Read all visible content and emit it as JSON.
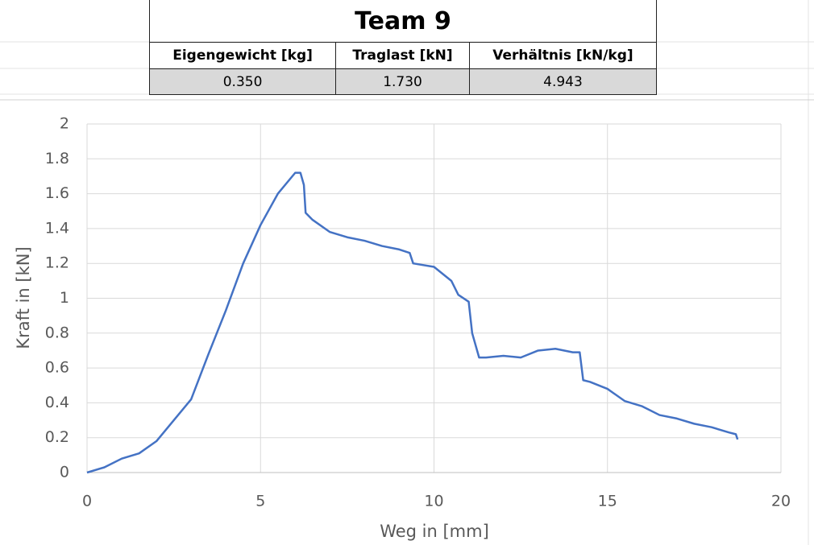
{
  "table": {
    "title": "Team 9",
    "header": [
      "Eigengewicht [kg]",
      "Traglast [kN]",
      "Verhältnis [kN/kg]"
    ],
    "rows": [
      [
        "0.350",
        "1.730",
        "4.943"
      ]
    ]
  },
  "chart_data": {
    "type": "line",
    "xlabel": "Weg in [mm]",
    "ylabel": "Kraft in [kN]",
    "x": [
      0,
      0.5,
      1,
      1.5,
      2,
      2.5,
      3,
      3.5,
      4,
      4.5,
      5,
      5.5,
      6,
      6.15,
      6.25,
      6.3,
      6.5,
      7,
      7.5,
      8,
      8.5,
      9,
      9.3,
      9.4,
      10,
      10.5,
      10.7,
      11,
      11.1,
      11.3,
      11.5,
      12,
      12.5,
      13,
      13.5,
      14,
      14.2,
      14.3,
      14.5,
      15,
      15.5,
      16,
      16.5,
      17,
      17.5,
      18,
      18.5,
      18.7,
      18.75
    ],
    "series": [
      {
        "color": "#4472c4",
        "values": [
          0,
          0.03,
          0.08,
          0.11,
          0.18,
          0.3,
          0.42,
          0.68,
          0.93,
          1.2,
          1.42,
          1.6,
          1.72,
          1.72,
          1.65,
          1.49,
          1.45,
          1.38,
          1.35,
          1.33,
          1.3,
          1.28,
          1.26,
          1.2,
          1.18,
          1.1,
          1.02,
          0.98,
          0.8,
          0.66,
          0.66,
          0.67,
          0.66,
          0.7,
          0.71,
          0.69,
          0.69,
          0.53,
          0.52,
          0.48,
          0.41,
          0.38,
          0.33,
          0.31,
          0.28,
          0.26,
          0.23,
          0.22,
          0.19
        ]
      }
    ],
    "xlim": [
      0,
      20
    ],
    "ylim": [
      0,
      2
    ],
    "xticks": [
      0,
      5,
      10,
      15,
      20
    ],
    "yticks": [
      0,
      0.2,
      0.4,
      0.6,
      0.8,
      1,
      1.2,
      1.4,
      1.6,
      1.8,
      2
    ],
    "grid": true
  }
}
